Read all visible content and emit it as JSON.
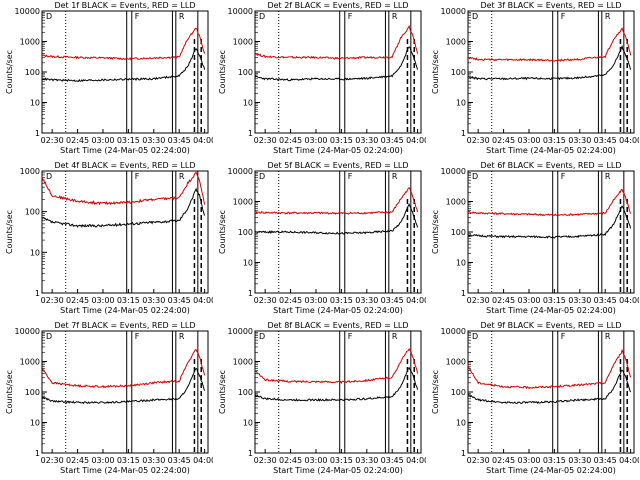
{
  "chart_data": [
    {
      "type": "line",
      "title": "Det 1f BLACK = Events, RED = LLD",
      "xlabel": "Start Time (24-Mar-05 02:24:00)",
      "ylabel": "Counts/sec",
      "ylim": [
        1,
        10000
      ],
      "y_scale": "log",
      "y_ticks": [
        "1",
        "10",
        "100",
        "1000",
        "10000"
      ],
      "x_ticks": [
        "02:30",
        "02:45",
        "03:00",
        "03:15",
        "03:30",
        "03:45",
        "04:00"
      ],
      "annotations": [
        "D",
        "F",
        "R"
      ],
      "series": [
        {
          "name": "LLD",
          "color": "#d40000",
          "x": [
            "02:24",
            "02:30",
            "02:45",
            "03:00",
            "03:15",
            "03:30",
            "03:45",
            "03:50",
            "03:55",
            "03:57",
            "04:00"
          ],
          "values": [
            350,
            320,
            300,
            290,
            270,
            290,
            310,
            1200,
            2800,
            1500,
            400
          ]
        },
        {
          "name": "Events",
          "color": "#000000",
          "x": [
            "02:24",
            "02:30",
            "02:45",
            "03:00",
            "03:15",
            "03:30",
            "03:45",
            "03:50",
            "03:55",
            "03:57",
            "04:00"
          ],
          "values": [
            60,
            55,
            52,
            55,
            58,
            60,
            75,
            150,
            600,
            350,
            120
          ]
        }
      ]
    },
    {
      "type": "line",
      "title": "Det 2f BLACK = Events, RED = LLD",
      "xlabel": "Start Time (24-Mar-05 02:24:00)",
      "ylabel": "Counts/sec",
      "ylim": [
        1,
        10000
      ],
      "y_scale": "log",
      "y_ticks": [
        "1",
        "10",
        "100",
        "1000",
        "10000"
      ],
      "x_ticks": [
        "02:30",
        "02:45",
        "03:00",
        "03:15",
        "03:30",
        "03:45",
        "04:00"
      ],
      "annotations": [
        "D",
        "F",
        "R"
      ],
      "series": [
        {
          "name": "LLD",
          "color": "#d40000",
          "x": [
            "02:24",
            "02:30",
            "02:45",
            "03:00",
            "03:15",
            "03:30",
            "03:45",
            "03:50",
            "03:55",
            "03:57",
            "04:00"
          ],
          "values": [
            400,
            320,
            300,
            300,
            280,
            300,
            310,
            1300,
            3000,
            1700,
            400
          ]
        },
        {
          "name": "Events",
          "color": "#000000",
          "x": [
            "02:24",
            "02:30",
            "02:45",
            "03:00",
            "03:15",
            "03:30",
            "03:45",
            "03:50",
            "03:55",
            "03:57",
            "04:00"
          ],
          "values": [
            70,
            60,
            55,
            60,
            58,
            62,
            75,
            160,
            700,
            400,
            120
          ]
        }
      ]
    },
    {
      "type": "line",
      "title": "Det 3f BLACK = Events, RED = LLD",
      "xlabel": "Start Time (24-Mar-05 02:24:00)",
      "ylabel": "Counts/sec",
      "ylim": [
        1,
        10000
      ],
      "y_scale": "log",
      "y_ticks": [
        "1",
        "10",
        "100",
        "1000",
        "10000"
      ],
      "x_ticks": [
        "02:30",
        "02:45",
        "03:00",
        "03:15",
        "03:30",
        "03:45",
        "04:00"
      ],
      "annotations": [
        "D",
        "F",
        "R"
      ],
      "series": [
        {
          "name": "LLD",
          "color": "#d40000",
          "x": [
            "02:24",
            "02:30",
            "02:45",
            "03:00",
            "03:15",
            "03:30",
            "03:45",
            "03:50",
            "03:55",
            "03:57",
            "04:00"
          ],
          "values": [
            300,
            260,
            250,
            250,
            240,
            260,
            320,
            1200,
            2600,
            1500,
            350
          ]
        },
        {
          "name": "Events",
          "color": "#000000",
          "x": [
            "02:24",
            "02:30",
            "02:45",
            "03:00",
            "03:15",
            "03:30",
            "03:45",
            "03:50",
            "03:55",
            "03:57",
            "04:00"
          ],
          "values": [
            70,
            60,
            60,
            62,
            60,
            65,
            80,
            170,
            650,
            380,
            120
          ]
        }
      ]
    },
    {
      "type": "line",
      "title": "Det 4f BLACK = Events, RED = LLD",
      "xlabel": "Start Time (24-Mar-05 02:24:00)",
      "ylabel": "Counts/sec",
      "ylim": [
        1,
        1000
      ],
      "y_scale": "log",
      "y_ticks": [
        "1",
        "10",
        "100",
        "1000"
      ],
      "x_ticks": [
        "02:30",
        "02:45",
        "03:00",
        "03:15",
        "03:30",
        "03:45",
        "04:00"
      ],
      "annotations": [
        "D",
        "F",
        "R"
      ],
      "series": [
        {
          "name": "LLD",
          "color": "#d40000",
          "x": [
            "02:24",
            "02:30",
            "02:45",
            "03:00",
            "03:15",
            "03:30",
            "03:45",
            "03:50",
            "03:55",
            "03:57",
            "04:00"
          ],
          "values": [
            700,
            250,
            180,
            160,
            170,
            200,
            220,
            500,
            900,
            600,
            150
          ]
        },
        {
          "name": "Events",
          "color": "#000000",
          "x": [
            "02:24",
            "02:30",
            "02:45",
            "03:00",
            "03:15",
            "03:30",
            "03:45",
            "03:50",
            "03:55",
            "03:57",
            "04:00"
          ],
          "values": [
            70,
            55,
            45,
            45,
            50,
            55,
            60,
            120,
            350,
            250,
            80
          ]
        }
      ]
    },
    {
      "type": "line",
      "title": "Det 5f BLACK = Events, RED = LLD",
      "xlabel": "Start Time (24-Mar-05 02:24:00)",
      "ylabel": "Counts/sec",
      "ylim": [
        1,
        10000
      ],
      "y_scale": "log",
      "y_ticks": [
        "1",
        "10",
        "100",
        "1000",
        "10000"
      ],
      "x_ticks": [
        "02:30",
        "02:45",
        "03:00",
        "03:15",
        "03:30",
        "03:45",
        "04:00"
      ],
      "annotations": [
        "D",
        "F",
        "R"
      ],
      "series": [
        {
          "name": "LLD",
          "color": "#d40000",
          "x": [
            "02:24",
            "02:30",
            "02:45",
            "03:00",
            "03:15",
            "03:30",
            "03:45",
            "03:50",
            "03:55",
            "03:57",
            "04:00"
          ],
          "values": [
            450,
            430,
            420,
            420,
            410,
            420,
            450,
            1200,
            2800,
            1600,
            450
          ]
        },
        {
          "name": "Events",
          "color": "#000000",
          "x": [
            "02:24",
            "02:30",
            "02:45",
            "03:00",
            "03:15",
            "03:30",
            "03:45",
            "03:50",
            "03:55",
            "03:57",
            "04:00"
          ],
          "values": [
            100,
            100,
            100,
            95,
            90,
            95,
            110,
            200,
            800,
            450,
            140
          ]
        }
      ]
    },
    {
      "type": "line",
      "title": "Det 6f BLACK = Events, RED = LLD",
      "xlabel": "Start Time (24-Mar-05 02:24:00)",
      "ylabel": "Counts/sec",
      "ylim": [
        1,
        10000
      ],
      "y_scale": "log",
      "y_ticks": [
        "1",
        "10",
        "100",
        "1000",
        "10000"
      ],
      "x_ticks": [
        "02:30",
        "02:45",
        "03:00",
        "03:15",
        "03:30",
        "03:45",
        "04:00"
      ],
      "annotations": [
        "D",
        "F",
        "R"
      ],
      "series": [
        {
          "name": "LLD",
          "color": "#d40000",
          "x": [
            "02:24",
            "02:30",
            "02:45",
            "03:00",
            "03:15",
            "03:30",
            "03:45",
            "03:50",
            "03:55",
            "03:57",
            "04:00"
          ],
          "values": [
            450,
            420,
            400,
            380,
            360,
            380,
            420,
            1100,
            2500,
            1400,
            400
          ]
        },
        {
          "name": "Events",
          "color": "#000000",
          "x": [
            "02:24",
            "02:30",
            "02:45",
            "03:00",
            "03:15",
            "03:30",
            "03:45",
            "03:50",
            "03:55",
            "03:57",
            "04:00"
          ],
          "values": [
            80,
            75,
            70,
            70,
            68,
            72,
            85,
            180,
            700,
            400,
            130
          ]
        }
      ]
    },
    {
      "type": "line",
      "title": "Det 7f BLACK = Events, RED = LLD",
      "xlabel": "Start Time (24-Mar-05 02:24:00)",
      "ylabel": "Counts/sec",
      "ylim": [
        1,
        10000
      ],
      "y_scale": "log",
      "y_ticks": [
        "1",
        "10",
        "100",
        "1000",
        "10000"
      ],
      "x_ticks": [
        "02:30",
        "02:45",
        "03:00",
        "03:15",
        "03:30",
        "03:45",
        "04:00"
      ],
      "annotations": [
        "D",
        "F",
        "R"
      ],
      "series": [
        {
          "name": "LLD",
          "color": "#d40000",
          "x": [
            "02:24",
            "02:30",
            "02:45",
            "03:00",
            "03:15",
            "03:30",
            "03:45",
            "03:50",
            "03:55",
            "03:57",
            "04:00"
          ],
          "values": [
            600,
            200,
            160,
            150,
            160,
            200,
            230,
            900,
            2500,
            1400,
            350
          ]
        },
        {
          "name": "Events",
          "color": "#000000",
          "x": [
            "02:24",
            "02:30",
            "02:45",
            "03:00",
            "03:15",
            "03:30",
            "03:45",
            "03:50",
            "03:55",
            "03:57",
            "04:00"
          ],
          "values": [
            70,
            50,
            45,
            45,
            48,
            55,
            60,
            140,
            600,
            350,
            110
          ]
        }
      ]
    },
    {
      "type": "line",
      "title": "Det 8f BLACK = Events, RED = LLD",
      "xlabel": "Start Time (24-Mar-05 02:24:00)",
      "ylabel": "Counts/sec",
      "ylim": [
        1,
        10000
      ],
      "y_scale": "log",
      "y_ticks": [
        "1",
        "10",
        "100",
        "1000",
        "10000"
      ],
      "x_ticks": [
        "02:30",
        "02:45",
        "03:00",
        "03:15",
        "03:30",
        "03:45",
        "04:00"
      ],
      "annotations": [
        "D",
        "F",
        "R"
      ],
      "series": [
        {
          "name": "LLD",
          "color": "#d40000",
          "x": [
            "02:24",
            "02:30",
            "02:45",
            "03:00",
            "03:15",
            "03:30",
            "03:45",
            "03:50",
            "03:55",
            "03:57",
            "04:00"
          ],
          "values": [
            500,
            250,
            220,
            220,
            210,
            240,
            300,
            1000,
            2700,
            1500,
            400
          ]
        },
        {
          "name": "Events",
          "color": "#000000",
          "x": [
            "02:24",
            "02:30",
            "02:45",
            "03:00",
            "03:15",
            "03:30",
            "03:45",
            "03:50",
            "03:55",
            "03:57",
            "04:00"
          ],
          "values": [
            80,
            60,
            55,
            55,
            55,
            60,
            70,
            150,
            650,
            380,
            120
          ]
        }
      ]
    },
    {
      "type": "line",
      "title": "Det 9f BLACK = Events, RED = LLD",
      "xlabel": "Start Time (24-Mar-05 02:24:00)",
      "ylabel": "Counts/sec",
      "ylim": [
        1,
        10000
      ],
      "y_scale": "log",
      "y_ticks": [
        "1",
        "10",
        "100",
        "1000",
        "10000"
      ],
      "x_ticks": [
        "02:30",
        "02:45",
        "03:00",
        "03:15",
        "03:30",
        "03:45",
        "04:00"
      ],
      "annotations": [
        "D",
        "F",
        "R"
      ],
      "series": [
        {
          "name": "LLD",
          "color": "#d40000",
          "x": [
            "02:24",
            "02:30",
            "02:45",
            "03:00",
            "03:15",
            "03:30",
            "03:45",
            "03:50",
            "03:55",
            "03:57",
            "04:00"
          ],
          "values": [
            700,
            200,
            150,
            140,
            150,
            170,
            200,
            800,
            2200,
            1300,
            300
          ]
        },
        {
          "name": "Events",
          "color": "#000000",
          "x": [
            "02:24",
            "02:30",
            "02:45",
            "03:00",
            "03:15",
            "03:30",
            "03:45",
            "03:50",
            "03:55",
            "03:57",
            "04:00"
          ],
          "values": [
            80,
            55,
            45,
            45,
            48,
            55,
            60,
            130,
            550,
            320,
            100
          ]
        }
      ]
    }
  ]
}
